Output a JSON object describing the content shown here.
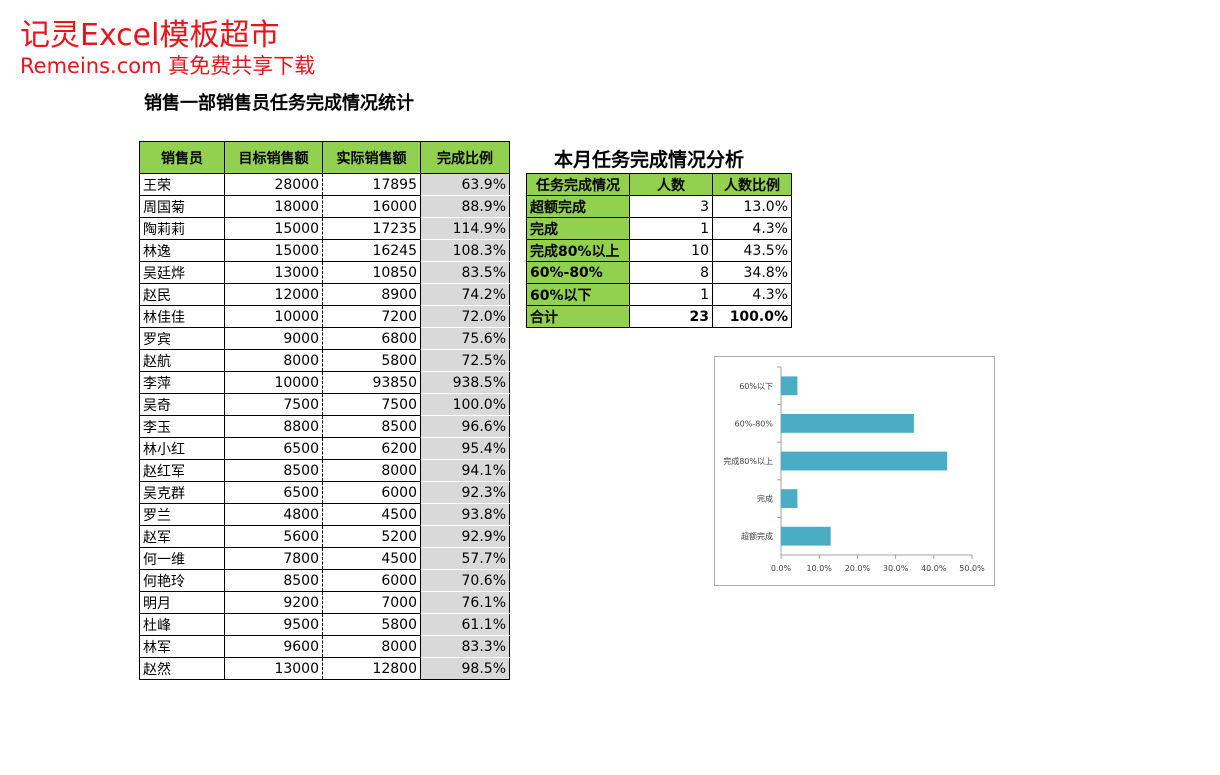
{
  "watermark": {
    "line1": "记灵Excel模板超市",
    "line2": "Remeins.com 真免费共享下载"
  },
  "page_title": "销售一部销售员任务完成情况统计",
  "main_table": {
    "headers": [
      "销售员",
      "目标销售额",
      "实际销售额",
      "完成比例"
    ],
    "rows": [
      {
        "name": "王荣",
        "target": "28000",
        "actual": "17895",
        "ratio": "63.9%"
      },
      {
        "name": "周国菊",
        "target": "18000",
        "actual": "16000",
        "ratio": "88.9%"
      },
      {
        "name": "陶莉莉",
        "target": "15000",
        "actual": "17235",
        "ratio": "114.9%"
      },
      {
        "name": "林逸",
        "target": "15000",
        "actual": "16245",
        "ratio": "108.3%"
      },
      {
        "name": "吴廷烨",
        "target": "13000",
        "actual": "10850",
        "ratio": "83.5%"
      },
      {
        "name": "赵民",
        "target": "12000",
        "actual": "8900",
        "ratio": "74.2%"
      },
      {
        "name": "林佳佳",
        "target": "10000",
        "actual": "7200",
        "ratio": "72.0%"
      },
      {
        "name": "罗宾",
        "target": "9000",
        "actual": "6800",
        "ratio": "75.6%"
      },
      {
        "name": "赵航",
        "target": "8000",
        "actual": "5800",
        "ratio": "72.5%"
      },
      {
        "name": "李萍",
        "target": "10000",
        "actual": "93850",
        "ratio": "938.5%"
      },
      {
        "name": "吴奇",
        "target": "7500",
        "actual": "7500",
        "ratio": "100.0%"
      },
      {
        "name": "李玉",
        "target": "8800",
        "actual": "8500",
        "ratio": "96.6%"
      },
      {
        "name": "林小红",
        "target": "6500",
        "actual": "6200",
        "ratio": "95.4%"
      },
      {
        "name": "赵红军",
        "target": "8500",
        "actual": "8000",
        "ratio": "94.1%"
      },
      {
        "name": "吴克群",
        "target": "6500",
        "actual": "6000",
        "ratio": "92.3%"
      },
      {
        "name": "罗兰",
        "target": "4800",
        "actual": "4500",
        "ratio": "93.8%"
      },
      {
        "name": "赵军",
        "target": "5600",
        "actual": "5200",
        "ratio": "92.9%"
      },
      {
        "name": "何一维",
        "target": "7800",
        "actual": "4500",
        "ratio": "57.7%"
      },
      {
        "name": "何艳玲",
        "target": "8500",
        "actual": "6000",
        "ratio": "70.6%"
      },
      {
        "name": "明月",
        "target": "9200",
        "actual": "7000",
        "ratio": "76.1%"
      },
      {
        "name": "杜峰",
        "target": "9500",
        "actual": "5800",
        "ratio": "61.1%"
      },
      {
        "name": "林军",
        "target": "9600",
        "actual": "8000",
        "ratio": "83.3%"
      },
      {
        "name": "赵然",
        "target": "13000",
        "actual": "12800",
        "ratio": "98.5%"
      }
    ]
  },
  "analysis": {
    "title": "本月任务完成情况分析",
    "headers": [
      "任务完成情况",
      "人数",
      "人数比例"
    ],
    "rows": [
      {
        "cat": "超额完成",
        "count": "3",
        "ratio": "13.0%"
      },
      {
        "cat": "完成",
        "count": "1",
        "ratio": "4.3%"
      },
      {
        "cat": "完成80%以上",
        "count": "10",
        "ratio": "43.5%"
      },
      {
        "cat": "60%-80%",
        "count": "8",
        "ratio": "34.8%"
      },
      {
        "cat": "60%以下",
        "count": "1",
        "ratio": "4.3%"
      }
    ],
    "total": {
      "cat": "合计",
      "count": "23",
      "ratio": "100.0%"
    }
  },
  "chart_data": {
    "type": "bar",
    "orientation": "horizontal",
    "categories": [
      "超额完成",
      "完成",
      "完成80%以上",
      "60%-80%",
      "60%以下"
    ],
    "values": [
      13.0,
      4.3,
      43.5,
      34.8,
      4.3
    ],
    "xlim": [
      0,
      50
    ],
    "xticks": [
      "0.0%",
      "10.0%",
      "20.0%",
      "30.0%",
      "40.0%",
      "50.0%"
    ],
    "bar_color": "#4bacc6",
    "grid": false,
    "legend": "none"
  }
}
